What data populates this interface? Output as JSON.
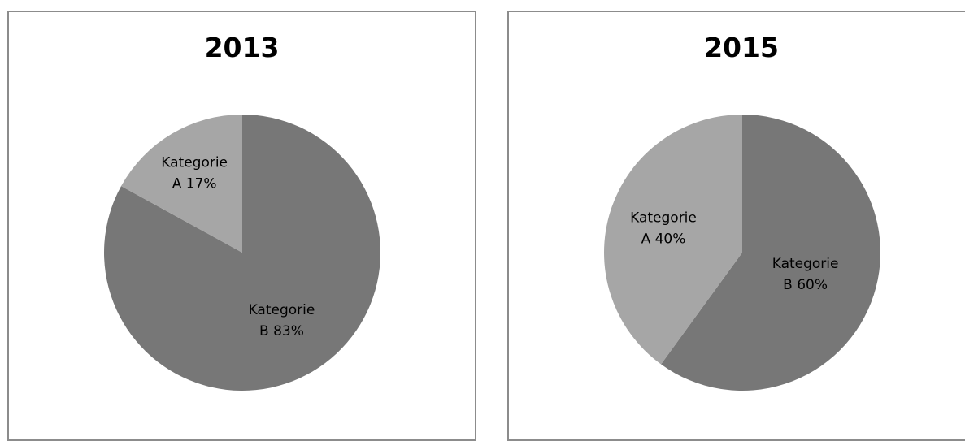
{
  "chart_data": [
    {
      "type": "pie",
      "title": "2013",
      "slices": [
        {
          "category": "Kategorie A",
          "value": 17,
          "label_line1": "Kategorie",
          "label_line2": "A 17%",
          "color": "#a6a6a6"
        },
        {
          "category": "Kategorie B",
          "value": 83,
          "label_line1": "Kategorie",
          "label_line2": "B 83%",
          "color": "#777777"
        }
      ]
    },
    {
      "type": "pie",
      "title": "2015",
      "slices": [
        {
          "category": "Kategorie A",
          "value": 40,
          "label_line1": "Kategorie",
          "label_line2": "A 40%",
          "color": "#a6a6a6"
        },
        {
          "category": "Kategorie B",
          "value": 60,
          "label_line1": "Kategorie",
          "label_line2": "B 60%",
          "color": "#777777"
        }
      ]
    }
  ]
}
